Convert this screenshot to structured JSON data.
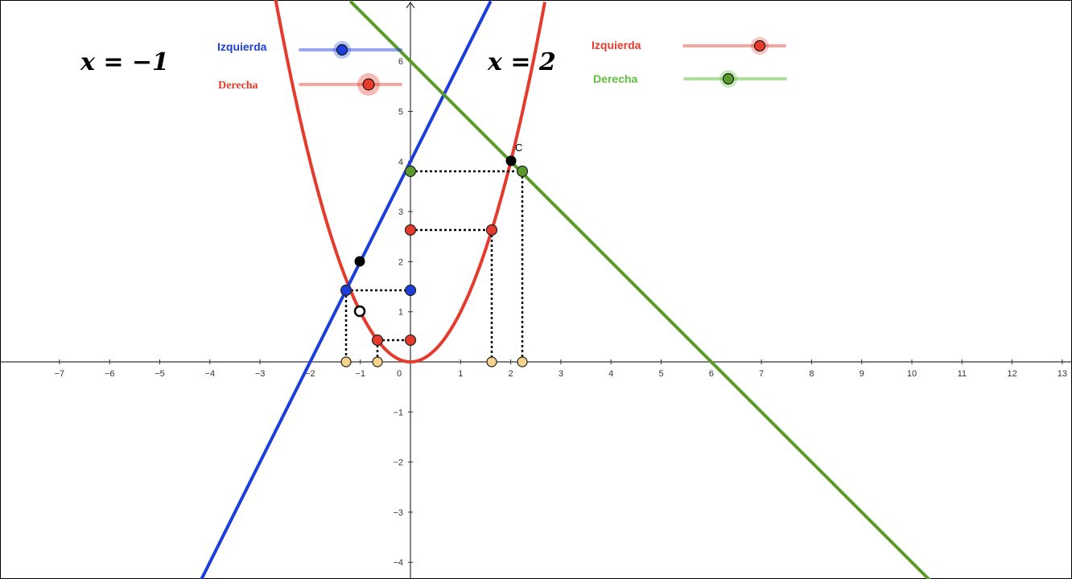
{
  "window_title": "",
  "axes": {
    "x_ticks": [
      "-7",
      "-6",
      "-5",
      "-4",
      "-3",
      "-2",
      "-1",
      "0",
      "1",
      "2",
      "3",
      "4",
      "5",
      "6",
      "7",
      "8",
      "9",
      "10",
      "11",
      "12",
      "13"
    ],
    "y_ticks": [
      "6",
      "5",
      "4",
      "3",
      "2",
      "1",
      "-1",
      "-2",
      "-3",
      "-4"
    ],
    "x_range": [
      -8,
      13
    ],
    "y_range": [
      -4.3,
      7.2
    ]
  },
  "colors": {
    "red": "#e53b2c",
    "blue": "#1c3ed9",
    "green": "#5a9a2a",
    "yellow": "#f5d38a"
  },
  "left_panel": {
    "label": "x = −1",
    "sliders": [
      {
        "label": "Izquierda",
        "color": "#1c3ed9",
        "value": 0.45
      },
      {
        "label": "Derecha",
        "color": "#e53b2c",
        "value": 0.68
      }
    ]
  },
  "right_panel": {
    "label": "x = 2",
    "sliders": [
      {
        "label": "Izquierda",
        "color": "#e53b2c",
        "value": 0.74
      },
      {
        "label": "Derecha",
        "color": "#5a9a2a",
        "value": 0.44
      }
    ]
  },
  "functions": {
    "parabola": "y = x^2",
    "blue_line": "y = 2x + 4",
    "green_line": "y = 6 - x"
  },
  "points": {
    "C": {
      "label": "C",
      "x": 2,
      "y": 4
    }
  }
}
